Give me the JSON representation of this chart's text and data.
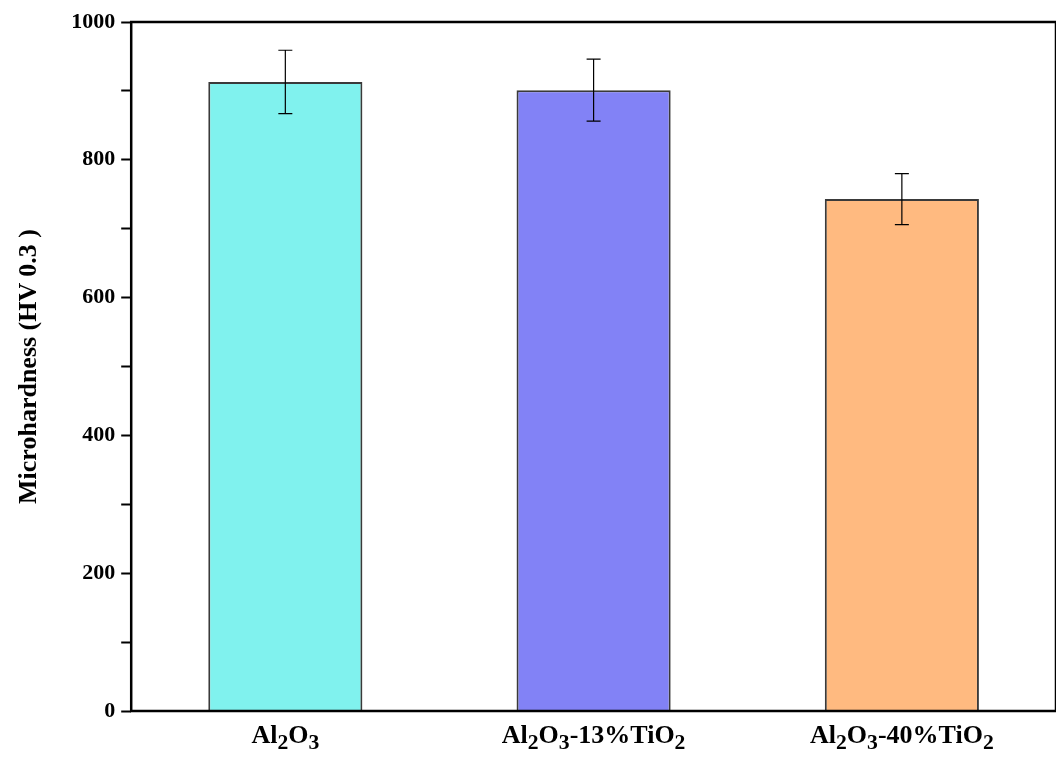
{
  "chart_data": {
    "type": "bar",
    "ylabel": "Microhardness (HV 0.3 )",
    "categories": [
      "Al$_{2}$O$_{3}$",
      "Al$_{2}$O$_{3}$-13%TiO$_{2}$",
      "Al$_{2}$O$_{3}$-40%TiO$_{2}$"
    ],
    "values": [
      913,
      901,
      743
    ],
    "errors": [
      46,
      45,
      37
    ],
    "colors": [
      "#80f2ee",
      "#8282f6",
      "#ffba80"
    ],
    "ylim": [
      0,
      1000
    ],
    "yticks": [
      0,
      {
        "value": 100,
        "label": null
      },
      200,
      {
        "value": 300,
        "label": null
      },
      400,
      {
        "value": 500,
        "label": null
      },
      600,
      {
        "value": 700,
        "label": null
      },
      800,
      {
        "value": 900,
        "label": null
      },
      1000
    ],
    "grid": false,
    "legend": false
  }
}
